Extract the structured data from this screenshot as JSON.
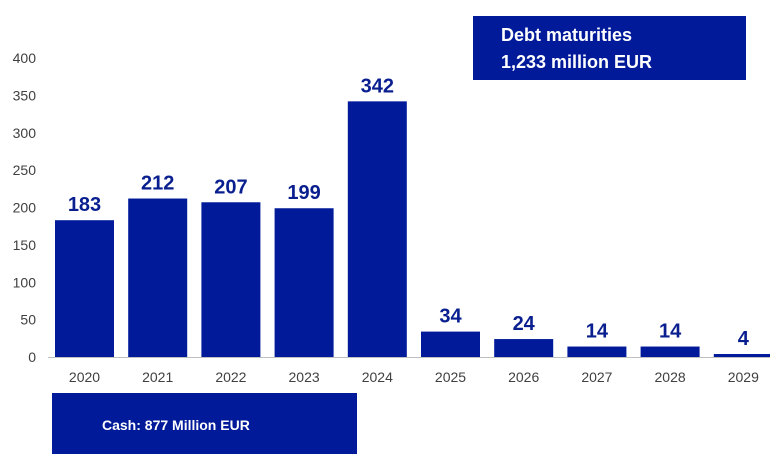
{
  "colors": {
    "bar": "#001a99",
    "banner": "#001a99",
    "label": "#0a1f8f",
    "axis": "#bfbfbf"
  },
  "chart_data": {
    "type": "bar",
    "categories": [
      "2020",
      "2021",
      "2022",
      "2023",
      "2024",
      "2025",
      "2026",
      "2027",
      "2028",
      "2029"
    ],
    "values": [
      183,
      212,
      207,
      199,
      342,
      34,
      24,
      14,
      14,
      4
    ],
    "ylim": [
      0,
      400
    ],
    "yticks": [
      0,
      50,
      100,
      150,
      200,
      250,
      300,
      350,
      400
    ],
    "grid": false,
    "data_labels": [
      "183",
      "212",
      "207",
      "199",
      "342",
      "34",
      "24",
      "14",
      "14",
      "4"
    ],
    "annotations": {
      "debt_line1": "Debt maturities",
      "debt_line2": "1,233 million EUR",
      "cash": "Cash: 877 Million EUR"
    }
  }
}
